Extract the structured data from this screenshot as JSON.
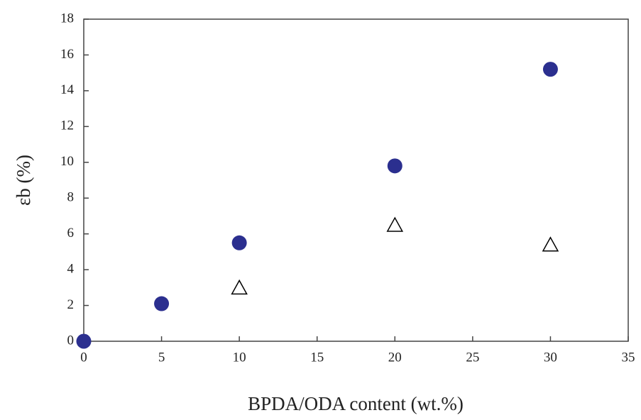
{
  "chart_data": {
    "type": "scatter",
    "x_label": "BPDA/ODA content (wt.%)",
    "y_label": "εb (%)",
    "xlim": [
      0,
      35
    ],
    "xticks": [
      0,
      5,
      10,
      15,
      20,
      25,
      30,
      35
    ],
    "ylim": [
      0,
      18
    ],
    "yticks": [
      0,
      2,
      4,
      6,
      8,
      10,
      12,
      14,
      16,
      18
    ],
    "series": [
      {
        "color": "#2b2f8f",
        "marker": "circle",
        "x": [
          0,
          5,
          10,
          20,
          30
        ],
        "values": [
          0,
          2.1,
          5.5,
          9.8,
          15.2
        ]
      },
      {
        "color": "#000000",
        "marker": "open-triangle",
        "x": [
          10,
          20,
          30
        ],
        "values": [
          3,
          6.5,
          5.4
        ]
      }
    ]
  }
}
